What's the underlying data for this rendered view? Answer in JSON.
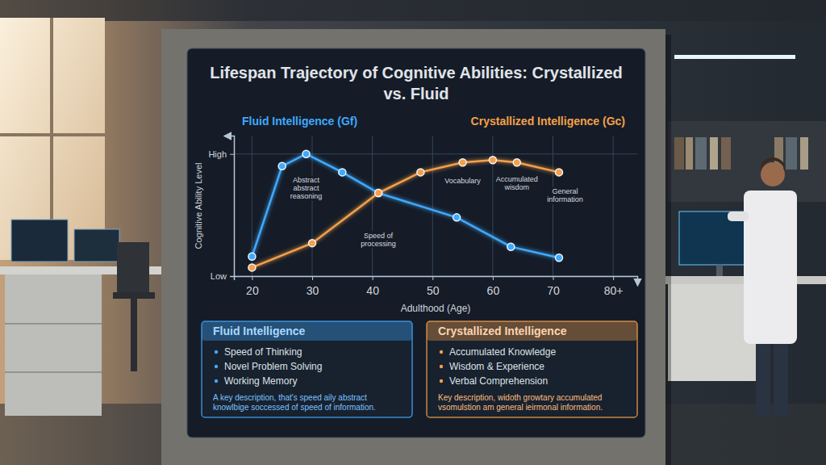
{
  "chart_data": {
    "type": "line",
    "title": "Lifespan Trajectory of Cognitive Abilities: Crystallized vs. Fluid",
    "xlabel": "Adulthood (Age)",
    "ylabel": "Cognitive Ability Level",
    "xlim": [
      17,
      84
    ],
    "xticks": [
      20,
      30,
      40,
      50,
      60,
      70,
      {
        "value": 80,
        "label": "80+"
      }
    ],
    "ylim": [
      0,
      115
    ],
    "yticks": [
      {
        "value": 0,
        "label": "Low"
      },
      {
        "value": 100,
        "label": "High"
      }
    ],
    "grid": true,
    "legend": "top",
    "series": [
      {
        "name": "Fluid Intelligence (Gf)",
        "color": "#3fa9ff",
        "marker": "circle",
        "line_style": "solid",
        "x": [
          20,
          25,
          29,
          35,
          41,
          54,
          63,
          71
        ],
        "values": [
          16,
          90,
          100,
          85,
          68,
          48,
          24,
          15
        ]
      },
      {
        "name": "Crystallized Intelligence (Gc)",
        "color": "#f5a04a",
        "marker": "circle",
        "line_style": "solid",
        "x": [
          20,
          30,
          41,
          48,
          55,
          60,
          64,
          71
        ],
        "values": [
          7,
          27,
          68,
          85,
          93,
          95,
          93,
          85
        ]
      }
    ],
    "annotations": [
      {
        "text": "Abstract abstract reasoning",
        "x": 29,
        "y": 72
      },
      {
        "text": "Speed of processing",
        "x": 41,
        "y": 30
      },
      {
        "text": "Vocabulary",
        "x": 55,
        "y": 78
      },
      {
        "text": "Accumulated wisdom",
        "x": 64,
        "y": 76
      },
      {
        "text": "General information",
        "x": 72,
        "y": 66
      }
    ]
  },
  "info_boxes": [
    {
      "title": "Fluid Intelligence",
      "items": [
        "Speed of Thinking",
        "Novel Problem Solving",
        "Working Memory"
      ],
      "description": "A key description, that's speed aily abstract knowlbige soccessed of speed of information."
    },
    {
      "title": "Crystallized Intelligence",
      "items": [
        "Accumulated Knowledge",
        "Wisdom & Experience",
        "Verbal Comprehension"
      ],
      "description": "Key description, widoth growtary accumulated vsomulstion am general ieirmonal information."
    }
  ]
}
